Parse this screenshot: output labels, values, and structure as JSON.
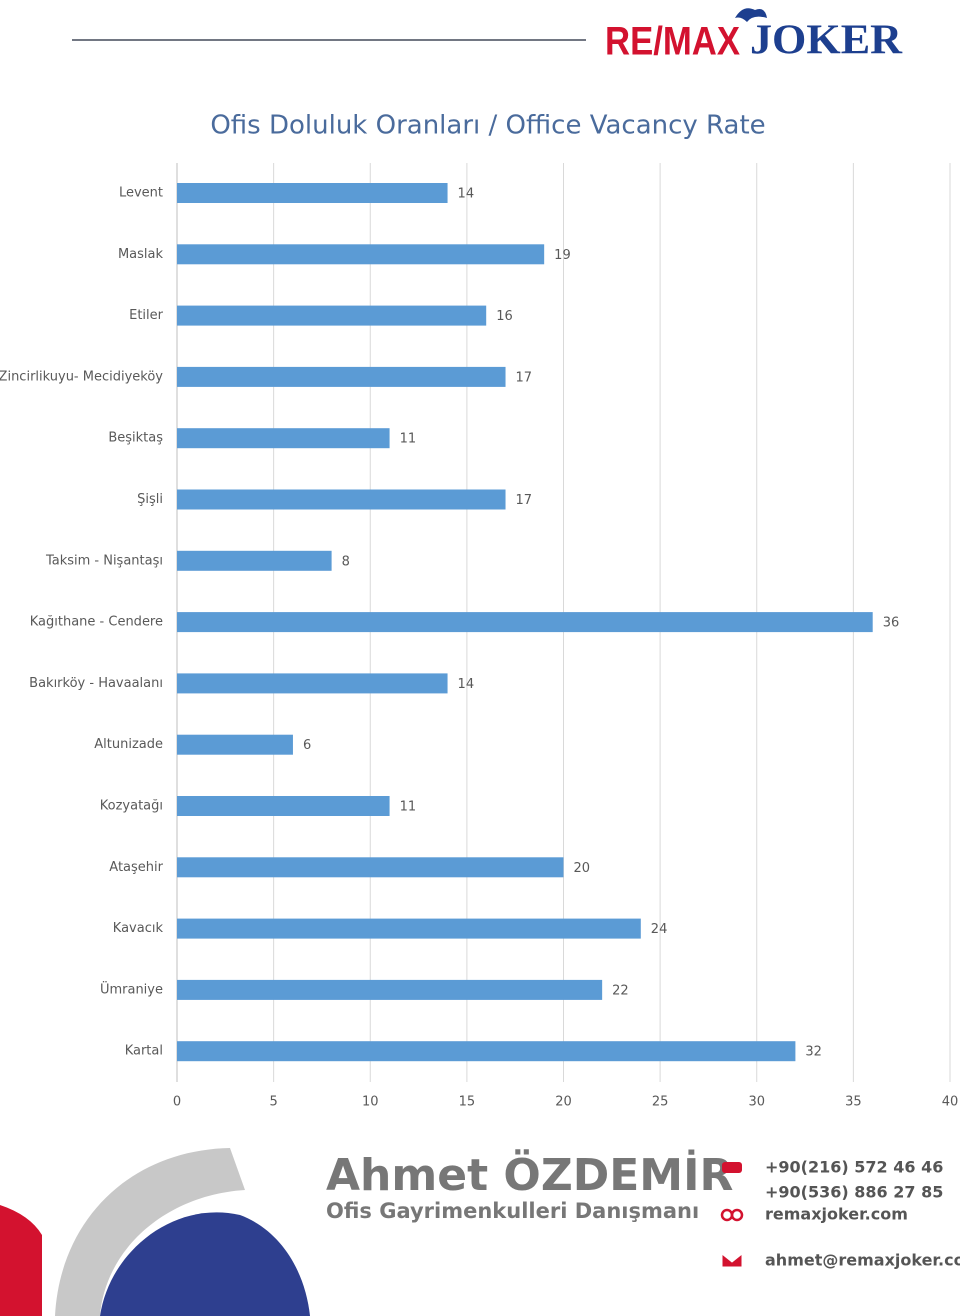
{
  "header": {
    "logo_left": "RE/MAX",
    "logo_right": "JOKER"
  },
  "chart_data": {
    "type": "bar",
    "orientation": "horizontal",
    "title": "Ofis Doluluk Oranları / Office Vacancy Rate",
    "categories": [
      "Levent",
      "Maslak",
      "Etiler",
      "Zincirlikuyu- Mecidiyeköy",
      "Beşiktaş",
      "Şişli",
      "Taksim - Nişantaşı",
      "Kağıthane - Cendere",
      "Bakırköy - Havaalanı",
      "Altunizade",
      "Kozyatağı",
      "Ataşehir",
      "Kavacık",
      "Ümraniye",
      "Kartal"
    ],
    "values": [
      14,
      19,
      16,
      17,
      11,
      17,
      8,
      36,
      14,
      6,
      11,
      20,
      24,
      22,
      32
    ],
    "color": "#5b9bd5",
    "xlim": [
      0,
      40
    ],
    "xticks": [
      0,
      5,
      10,
      15,
      20,
      25,
      30,
      35,
      40
    ],
    "grid": true
  },
  "footer": {
    "name": "Ahmet ÖZDEMİR",
    "role": "Ofis Gayrimenkulleri Danışmanı",
    "phone1": "+90(216) 572 46 46",
    "phone2": "+90(536) 886 27 85",
    "web": "remaxjoker.com",
    "email": "ahmet@remaxjoker.com"
  }
}
